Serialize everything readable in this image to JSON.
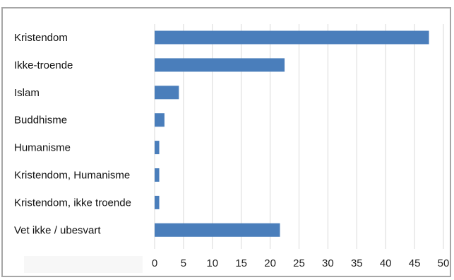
{
  "chart_data": {
    "type": "bar",
    "orientation": "horizontal",
    "categories": [
      "Kristendom",
      "Ikke-troende",
      "Islam",
      "Buddhisme",
      "Humanisme",
      "Kristendom, Humanisme",
      "Kristendom, ikke troende",
      "Vet ikke / ubesvart"
    ],
    "values": [
      47.5,
      22.5,
      4.2,
      1.7,
      0.8,
      0.8,
      0.8,
      21.7
    ],
    "xlim": [
      0,
      50
    ],
    "xticks": [
      "0",
      "5",
      "10",
      "15",
      "20",
      "25",
      "30",
      "35",
      "40",
      "45",
      "50"
    ],
    "title": "",
    "xlabel": "",
    "ylabel": "",
    "grid": "vertical",
    "legend": "none",
    "bar_color": "#4a7ebb",
    "grid_color": "#d9d9d9",
    "frame_color": "#a6a6a6"
  }
}
